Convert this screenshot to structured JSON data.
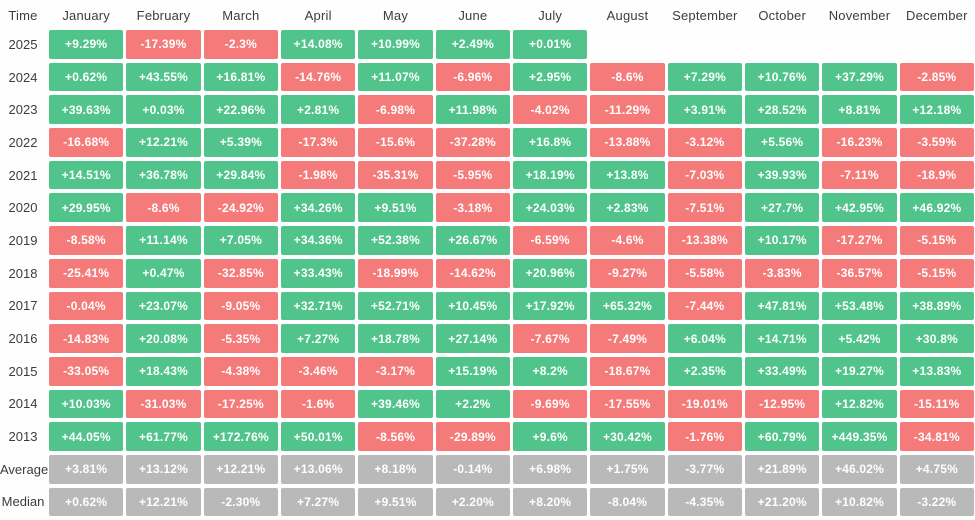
{
  "colors": {
    "positive": "#50C48B",
    "negative": "#F57B7B",
    "neutral": "#B9B9B9",
    "header_text": "#3D3D3D",
    "cell_text": "#FFFFFF",
    "background": "#FEFEFE"
  },
  "chart_data": {
    "type": "heatmap",
    "corner_label": "Time",
    "columns": [
      "January",
      "February",
      "March",
      "April",
      "May",
      "June",
      "July",
      "August",
      "September",
      "October",
      "November",
      "December"
    ],
    "rows": [
      {
        "label": "2025",
        "kind": "year",
        "values": [
          "+9.29%",
          "-17.39%",
          "-2.3%",
          "+14.08%",
          "+10.99%",
          "+2.49%",
          "+0.01%",
          "",
          "",
          "",
          "",
          ""
        ]
      },
      {
        "label": "2024",
        "kind": "year",
        "values": [
          "+0.62%",
          "+43.55%",
          "+16.81%",
          "-14.76%",
          "+11.07%",
          "-6.96%",
          "+2.95%",
          "-8.6%",
          "+7.29%",
          "+10.76%",
          "+37.29%",
          "-2.85%"
        ]
      },
      {
        "label": "2023",
        "kind": "year",
        "values": [
          "+39.63%",
          "+0.03%",
          "+22.96%",
          "+2.81%",
          "-6.98%",
          "+11.98%",
          "-4.02%",
          "-11.29%",
          "+3.91%",
          "+28.52%",
          "+8.81%",
          "+12.18%"
        ]
      },
      {
        "label": "2022",
        "kind": "year",
        "values": [
          "-16.68%",
          "+12.21%",
          "+5.39%",
          "-17.3%",
          "-15.6%",
          "-37.28%",
          "+16.8%",
          "-13.88%",
          "-3.12%",
          "+5.56%",
          "-16.23%",
          "-3.59%"
        ]
      },
      {
        "label": "2021",
        "kind": "year",
        "values": [
          "+14.51%",
          "+36.78%",
          "+29.84%",
          "-1.98%",
          "-35.31%",
          "-5.95%",
          "+18.19%",
          "+13.8%",
          "-7.03%",
          "+39.93%",
          "-7.11%",
          "-18.9%"
        ]
      },
      {
        "label": "2020",
        "kind": "year",
        "values": [
          "+29.95%",
          "-8.6%",
          "-24.92%",
          "+34.26%",
          "+9.51%",
          "-3.18%",
          "+24.03%",
          "+2.83%",
          "-7.51%",
          "+27.7%",
          "+42.95%",
          "+46.92%"
        ]
      },
      {
        "label": "2019",
        "kind": "year",
        "values": [
          "-8.58%",
          "+11.14%",
          "+7.05%",
          "+34.36%",
          "+52.38%",
          "+26.67%",
          "-6.59%",
          "-4.6%",
          "-13.38%",
          "+10.17%",
          "-17.27%",
          "-5.15%"
        ]
      },
      {
        "label": "2018",
        "kind": "year",
        "values": [
          "-25.41%",
          "+0.47%",
          "-32.85%",
          "+33.43%",
          "-18.99%",
          "-14.62%",
          "+20.96%",
          "-9.27%",
          "-5.58%",
          "-3.83%",
          "-36.57%",
          "-5.15%"
        ]
      },
      {
        "label": "2017",
        "kind": "year",
        "values": [
          "-0.04%",
          "+23.07%",
          "-9.05%",
          "+32.71%",
          "+52.71%",
          "+10.45%",
          "+17.92%",
          "+65.32%",
          "-7.44%",
          "+47.81%",
          "+53.48%",
          "+38.89%"
        ]
      },
      {
        "label": "2016",
        "kind": "year",
        "values": [
          "-14.83%",
          "+20.08%",
          "-5.35%",
          "+7.27%",
          "+18.78%",
          "+27.14%",
          "-7.67%",
          "-7.49%",
          "+6.04%",
          "+14.71%",
          "+5.42%",
          "+30.8%"
        ]
      },
      {
        "label": "2015",
        "kind": "year",
        "values": [
          "-33.05%",
          "+18.43%",
          "-4.38%",
          "-3.46%",
          "-3.17%",
          "+15.19%",
          "+8.2%",
          "-18.67%",
          "+2.35%",
          "+33.49%",
          "+19.27%",
          "+13.83%"
        ]
      },
      {
        "label": "2014",
        "kind": "year",
        "values": [
          "+10.03%",
          "-31.03%",
          "-17.25%",
          "-1.6%",
          "+39.46%",
          "+2.2%",
          "-9.69%",
          "-17.55%",
          "-19.01%",
          "-12.95%",
          "+12.82%",
          "-15.11%"
        ]
      },
      {
        "label": "2013",
        "kind": "year",
        "values": [
          "+44.05%",
          "+61.77%",
          "+172.76%",
          "+50.01%",
          "-8.56%",
          "-29.89%",
          "+9.6%",
          "+30.42%",
          "-1.76%",
          "+60.79%",
          "+449.35%",
          "-34.81%"
        ]
      },
      {
        "label": "Average",
        "kind": "stat",
        "values": [
          "+3.81%",
          "+13.12%",
          "+12.21%",
          "+13.06%",
          "+8.18%",
          "-0.14%",
          "+6.98%",
          "+1.75%",
          "-3.77%",
          "+21.89%",
          "+46.02%",
          "+4.75%"
        ]
      },
      {
        "label": "Median",
        "kind": "stat",
        "values": [
          "+0.62%",
          "+12.21%",
          "-2.30%",
          "+7.27%",
          "+9.51%",
          "+2.20%",
          "+8.20%",
          "-8.04%",
          "-4.35%",
          "+21.20%",
          "+10.82%",
          "-3.22%"
        ]
      }
    ]
  }
}
